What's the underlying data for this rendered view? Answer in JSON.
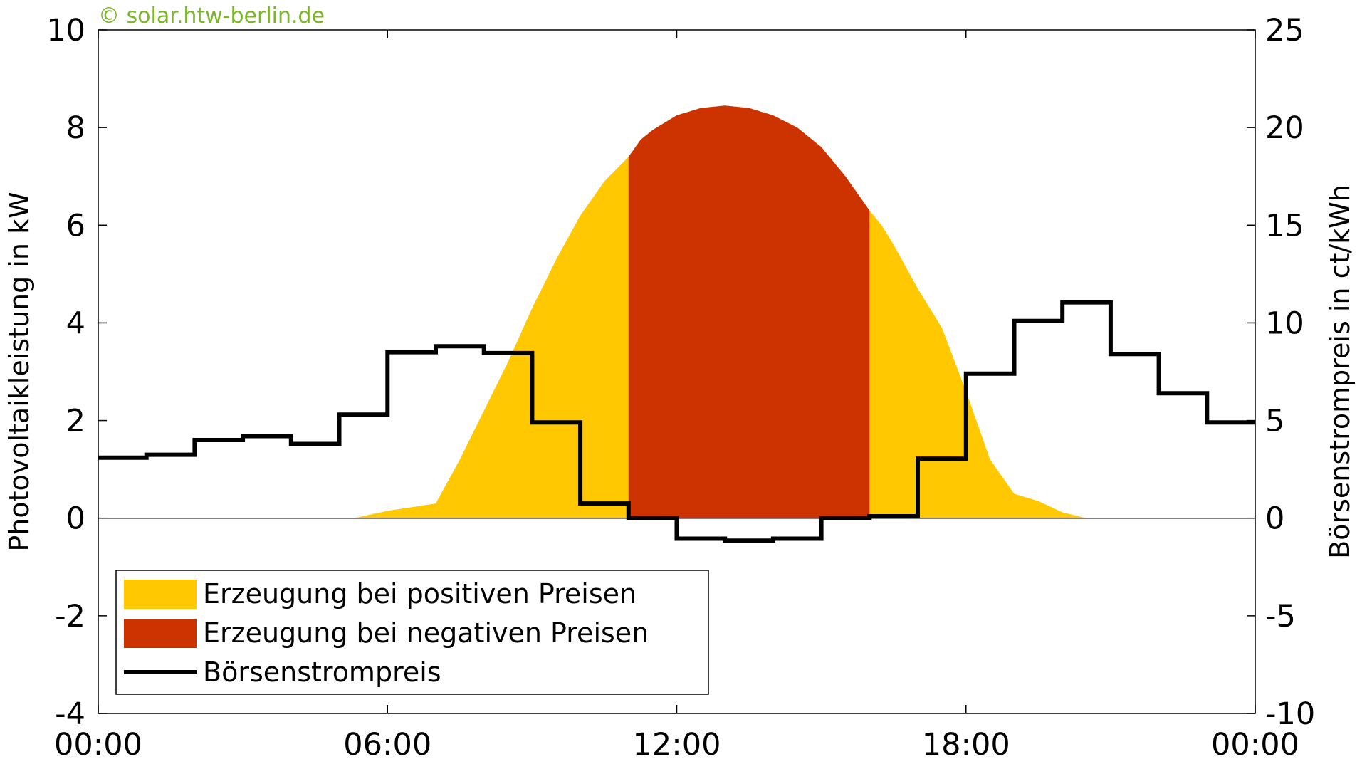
{
  "watermark": "© solar.htw-berlin.de",
  "colors": {
    "positive": "#FFC800",
    "negative": "#CC3300",
    "price_line": "#000000",
    "watermark": "#7DB52A"
  },
  "chart_data": {
    "type": "area",
    "title": "",
    "xlabel": "",
    "ylabel_left": "Photovoltaikleistung in kW",
    "ylabel_right": "Börsenstrompreis in ct/kWh",
    "x_range_hours": [
      0,
      24
    ],
    "x_ticks": [
      "00:00",
      "06:00",
      "12:00",
      "18:00",
      "00:00"
    ],
    "ylim_left": [
      -4,
      10
    ],
    "y_ticks_left": [
      "-4",
      "-2",
      "0",
      "2",
      "4",
      "6",
      "8",
      "10"
    ],
    "ylim_right": [
      -10,
      25
    ],
    "y_ticks_right": [
      "-10",
      "-5",
      "0",
      "5",
      "10",
      "15",
      "20",
      "25"
    ],
    "legend_position": "lower-left",
    "legend": [
      {
        "label": "Erzeugung bei positiven Preisen",
        "kind": "area",
        "color": "#FFC800"
      },
      {
        "label": "Erzeugung bei negativen Preisen",
        "kind": "area",
        "color": "#CC3300"
      },
      {
        "label": "Börsenstrompreis",
        "kind": "line",
        "color": "#000000"
      }
    ],
    "pv_power_kw": {
      "hours": [
        5.3,
        6.0,
        7.0,
        7.5,
        8.0,
        8.5,
        9.0,
        9.5,
        10.0,
        10.5,
        11.0,
        11.25,
        11.5,
        12.0,
        12.5,
        13.0,
        13.5,
        14.0,
        14.5,
        15.0,
        15.5,
        16.0,
        16.25,
        16.5,
        17.0,
        17.5,
        18.0,
        18.5,
        19.0,
        19.5,
        20.0,
        20.5
      ],
      "values": [
        0.0,
        0.15,
        0.3,
        1.2,
        2.2,
        3.2,
        4.3,
        5.3,
        6.2,
        6.9,
        7.4,
        7.75,
        7.95,
        8.25,
        8.4,
        8.45,
        8.4,
        8.25,
        8.0,
        7.6,
        7.0,
        6.3,
        6.0,
        5.6,
        4.7,
        3.9,
        2.6,
        1.2,
        0.5,
        0.35,
        0.12,
        0.0
      ]
    },
    "negative_price_interval_hours": [
      11.0,
      16.0
    ],
    "price_ct_kwh": {
      "hour_start": [
        0,
        1,
        2,
        3,
        4,
        5,
        6,
        7,
        8,
        9,
        10,
        11,
        12,
        13,
        14,
        15,
        16,
        17,
        18,
        19,
        20,
        21,
        22,
        23
      ],
      "values": [
        3.1,
        3.25,
        4.0,
        4.2,
        3.8,
        5.3,
        8.5,
        8.8,
        8.45,
        4.9,
        0.75,
        0.0,
        -1.05,
        -1.15,
        -1.05,
        0.0,
        0.1,
        3.05,
        7.4,
        10.1,
        11.05,
        8.4,
        6.4,
        4.9
      ]
    }
  }
}
